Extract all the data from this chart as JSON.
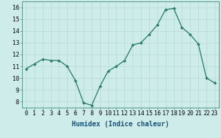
{
  "x": [
    0,
    1,
    2,
    3,
    4,
    5,
    6,
    7,
    8,
    9,
    10,
    11,
    12,
    13,
    14,
    15,
    16,
    17,
    18,
    19,
    20,
    21,
    22,
    23
  ],
  "y": [
    10.8,
    11.2,
    11.6,
    11.5,
    11.5,
    11.0,
    9.8,
    7.9,
    7.7,
    9.3,
    10.6,
    11.0,
    11.5,
    12.8,
    13.0,
    13.7,
    14.5,
    15.8,
    15.9,
    14.3,
    13.7,
    12.9,
    10.0,
    9.6
  ],
  "line_color": "#2e7d6e",
  "marker": "D",
  "marker_size": 2.0,
  "line_width": 1.0,
  "xlabel": "Humidex (Indice chaleur)",
  "xlabel_fontsize": 7,
  "xlabel_color": "#1a5276",
  "xlim": [
    -0.5,
    23.5
  ],
  "ylim": [
    7.5,
    16.5
  ],
  "yticks": [
    8,
    9,
    10,
    11,
    12,
    13,
    14,
    15,
    16
  ],
  "xticks": [
    0,
    1,
    2,
    3,
    4,
    5,
    6,
    7,
    8,
    9,
    10,
    11,
    12,
    13,
    14,
    15,
    16,
    17,
    18,
    19,
    20,
    21,
    22,
    23
  ],
  "xtick_labels": [
    "0",
    "1",
    "2",
    "3",
    "4",
    "5",
    "6",
    "7",
    "8",
    "9",
    "10",
    "11",
    "12",
    "13",
    "14",
    "15",
    "16",
    "17",
    "18",
    "19",
    "20",
    "21",
    "22",
    "23"
  ],
  "background_color": "#cdecea",
  "grid_color": "#b8dbd9",
  "tick_fontsize": 6,
  "fig_bg": "#cdecea"
}
